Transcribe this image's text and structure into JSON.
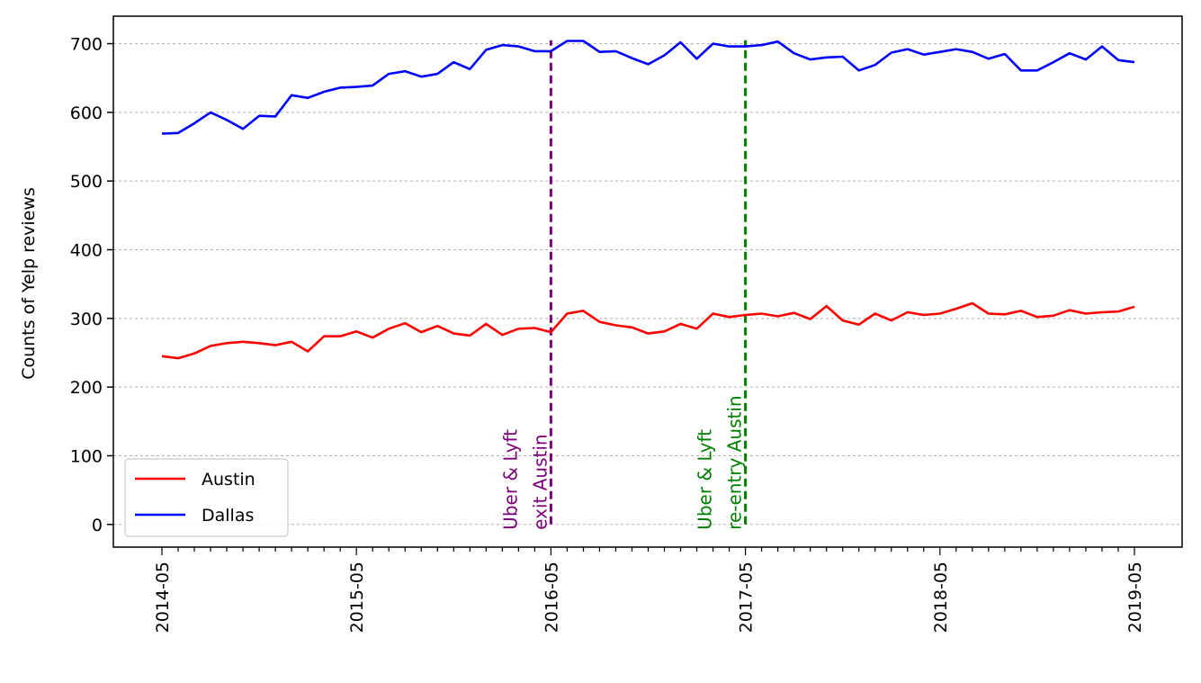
{
  "chart_data": {
    "type": "line",
    "title": "",
    "xlabel": "",
    "ylabel": "Counts of Yelp reviews",
    "ylim": [
      -33,
      740
    ],
    "yticks": [
      0,
      100,
      200,
      300,
      400,
      500,
      600,
      700
    ],
    "grid": "horizontal-dashed",
    "legend_position": "lower-left",
    "x_start": "2014-05",
    "x_end": "2019-05",
    "x_tick_labels": [
      "2014-05",
      "2015-05",
      "2016-05",
      "2017-05",
      "2018-05",
      "2019-05"
    ],
    "series": [
      {
        "name": "Austin",
        "color": "#ff0000",
        "values": [
          245,
          242,
          249,
          260,
          264,
          266,
          264,
          261,
          266,
          252,
          274,
          274,
          281,
          272,
          285,
          293,
          280,
          289,
          278,
          275,
          292,
          276,
          285,
          286,
          280,
          307,
          311,
          295,
          290,
          287,
          278,
          281,
          292,
          285,
          307,
          302,
          305,
          307,
          303,
          308,
          299,
          318,
          297,
          291,
          307,
          297,
          309,
          305,
          307,
          314,
          322,
          307,
          306,
          311,
          302,
          304,
          312,
          307,
          309,
          310,
          317
        ]
      },
      {
        "name": "Dallas",
        "color": "#0000ff",
        "values": [
          569,
          570,
          584,
          600,
          589,
          576,
          595,
          594,
          625,
          621,
          630,
          636,
          637,
          639,
          656,
          660,
          652,
          656,
          673,
          663,
          691,
          698,
          696,
          689,
          689,
          704,
          704,
          688,
          689,
          679,
          670,
          683,
          702,
          678,
          700,
          696,
          696,
          698,
          703,
          686,
          677,
          680,
          681,
          661,
          669,
          687,
          692,
          684,
          688,
          692,
          688,
          678,
          685,
          661,
          661,
          673,
          686,
          677,
          696,
          676,
          673
        ]
      }
    ],
    "annotations": [
      {
        "date": "2016-05",
        "color": "#7b007b",
        "line1": "Uber & Lyft",
        "line2": "exit Austin"
      },
      {
        "date": "2017-05",
        "color": "#008000",
        "line1": "Uber & Lyft",
        "line2": "re-entry Austin"
      }
    ]
  }
}
